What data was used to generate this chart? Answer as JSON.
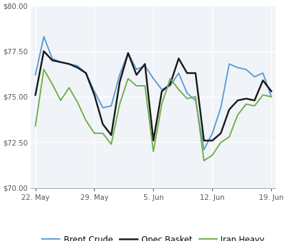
{
  "x_labels": [
    "22. May",
    "29. May",
    "5. Jun",
    "12. Jun",
    "19. Jun"
  ],
  "x_positions": [
    0,
    7,
    14,
    21,
    28
  ],
  "brent_crude": {
    "x": [
      0,
      1,
      2,
      3,
      4,
      5,
      6,
      7,
      8,
      9,
      10,
      11,
      12,
      13,
      14,
      15,
      16,
      17,
      18,
      19,
      20,
      21,
      22,
      23,
      24,
      25,
      26,
      27,
      28
    ],
    "y": [
      76.2,
      78.3,
      77.1,
      76.9,
      76.8,
      76.7,
      76.3,
      75.3,
      74.4,
      74.5,
      76.2,
      77.4,
      76.5,
      76.7,
      76.0,
      75.4,
      75.6,
      76.3,
      75.2,
      74.8,
      72.1,
      73.0,
      74.4,
      76.8,
      76.6,
      76.5,
      76.1,
      76.3,
      75.0
    ]
  },
  "opec_basket": {
    "x": [
      0,
      1,
      2,
      3,
      4,
      5,
      6,
      7,
      8,
      9,
      10,
      11,
      12,
      13,
      14,
      15,
      16,
      17,
      18,
      19,
      20,
      21,
      22,
      23,
      24,
      25,
      26,
      27,
      28
    ],
    "y": [
      75.1,
      77.5,
      77.0,
      76.9,
      76.8,
      76.6,
      76.3,
      75.1,
      73.5,
      72.9,
      75.8,
      77.4,
      76.2,
      76.8,
      72.6,
      75.3,
      75.7,
      77.1,
      76.3,
      76.3,
      72.6,
      72.6,
      73.0,
      74.3,
      74.8,
      74.9,
      74.8,
      75.9,
      75.3
    ]
  },
  "iran_heavy": {
    "x": [
      0,
      1,
      2,
      3,
      4,
      5,
      6,
      7,
      8,
      9,
      10,
      11,
      12,
      13,
      14,
      15,
      16,
      17,
      18,
      19,
      20,
      21,
      22,
      23,
      24,
      25,
      26,
      27,
      28
    ],
    "y": [
      73.4,
      76.5,
      75.7,
      74.8,
      75.5,
      74.7,
      73.7,
      73.0,
      73.0,
      72.4,
      74.6,
      76.0,
      75.6,
      75.6,
      72.0,
      74.6,
      76.0,
      75.4,
      74.9,
      75.0,
      71.5,
      71.8,
      72.5,
      72.8,
      74.0,
      74.6,
      74.5,
      75.1,
      75.0
    ]
  },
  "brent_color": "#5B9BD5",
  "opec_color": "#1a1a1a",
  "iran_color": "#70AD47",
  "ylim": [
    70.0,
    80.0
  ],
  "yticks": [
    70.0,
    72.5,
    75.0,
    77.5,
    80.0
  ],
  "legend_labels": [
    "Brent Crude",
    "Opec Basket",
    "Iran Heavy"
  ],
  "bg_color": "#ffffff",
  "plot_bg_color": "#f0f4f8",
  "grid_color": "#ffffff"
}
